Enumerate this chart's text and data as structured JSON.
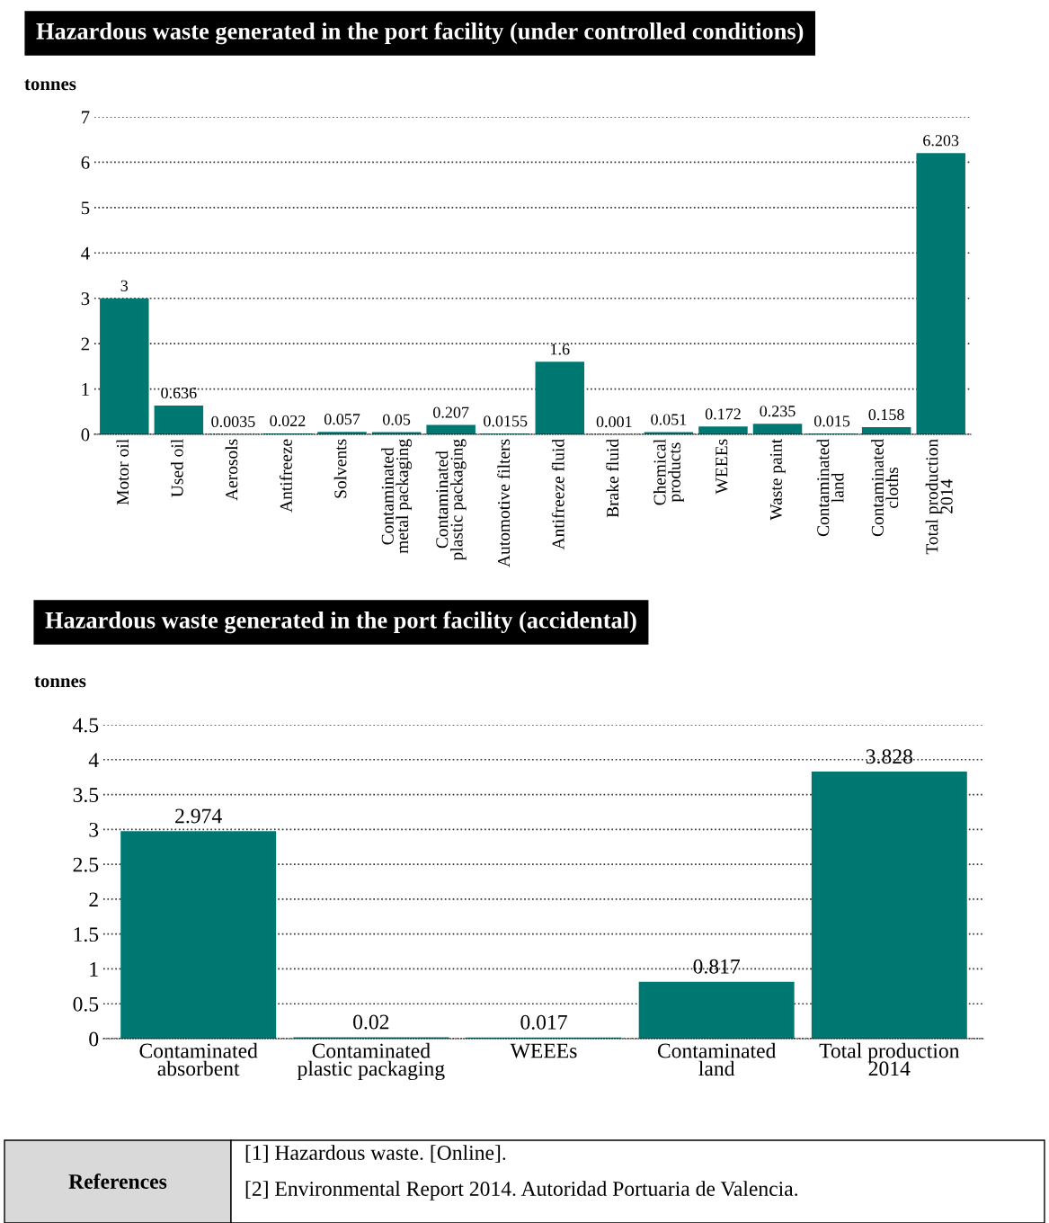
{
  "chart_data": [
    {
      "type": "bar",
      "title": "Hazardous waste generated in the port facility (under controlled conditions)",
      "ylabel": "tonnes",
      "categories": [
        "Motor oil",
        "Used oil",
        "Aerosols",
        "Antifreeze",
        "Solvents",
        "Contaminated\nmetal packaging",
        "Contaminated\nplastic packaging",
        "Automotive filters",
        "Antifreeze fluid",
        "Brake fluid",
        "Chemical\nproducts",
        "WEEEs",
        "Waste paint",
        "Contaminated\nland",
        "Contaminated\ncloths",
        "Total production\n2014"
      ],
      "values": [
        3,
        0.636,
        0.0035,
        0.022,
        0.057,
        0.05,
        0.207,
        0.0155,
        1.6,
        0.001,
        0.051,
        0.172,
        0.235,
        0.015,
        0.158,
        6.203
      ],
      "color": "#007872",
      "ylim": [
        0,
        7
      ],
      "yticks": [
        0,
        1,
        2,
        3,
        4,
        5,
        6,
        7
      ],
      "grid": "y",
      "data_labels": true,
      "legend": false
    },
    {
      "type": "bar",
      "title": "Hazardous waste generated in the port facility (accidental)",
      "ylabel": "tonnes",
      "categories": [
        "Contaminated\nabsorbent",
        "Contaminated\nplastic packaging",
        "WEEEs",
        "Contaminated\nland",
        "Total production\n2014"
      ],
      "values": [
        2.974,
        0.02,
        0.017,
        0.817,
        3.828
      ],
      "color": "#007872",
      "ylim": [
        0,
        4.5
      ],
      "yticks": [
        0,
        0.5,
        1,
        1.5,
        2,
        2.5,
        3,
        3.5,
        4,
        4.5
      ],
      "grid": "y",
      "data_labels": true,
      "legend": false,
      "annotations": [
        "References",
        "[1] Hazardous waste. [Online].",
        "[2] Environmental Report 2014. Autoridad Portuaria de Valencia."
      ]
    }
  ]
}
